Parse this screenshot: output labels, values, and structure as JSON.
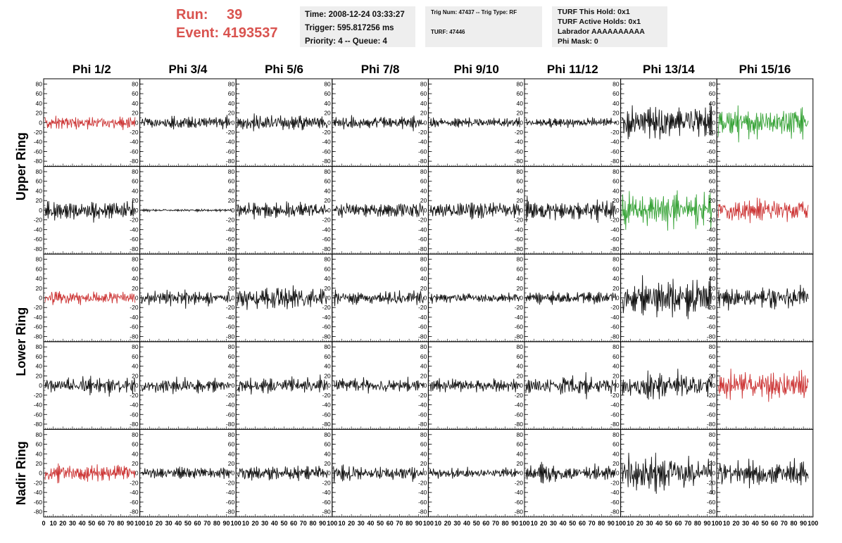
{
  "header": {
    "run_label": "Run:",
    "run_value": "39",
    "event_label": "Event:",
    "event_value": "4193537",
    "time": "Time: 2008-12-24 03:33:27",
    "trigger": "Trigger: 595.817256 ms",
    "priority": "Priority: 4 -- Queue: 4",
    "trig_num": "Trig Num: 47437 -- Trig Type: RF",
    "turf": "TURF: 47446",
    "turf_hold": "TURF This Hold: 0x1",
    "turf_active": "TURF Active Holds: 0x1",
    "labrador": "Labrador AAAAAAAAAA",
    "phi_mask": "Phi Mask: 0"
  },
  "chart_data": {
    "type": "line",
    "columns": [
      "Phi 1/2",
      "Phi 3/4",
      "Phi 5/6",
      "Phi 7/8",
      "Phi 9/10",
      "Phi 11/12",
      "Phi 13/14",
      "Phi 15/16"
    ],
    "ring_labels": [
      {
        "text": "Upper Ring",
        "rows": [
          0,
          1
        ]
      },
      {
        "text": "Lower Ring",
        "rows": [
          2,
          3
        ]
      },
      {
        "text": "Nadir Ring",
        "rows": [
          4,
          4
        ]
      }
    ],
    "xlim": [
      0,
      100
    ],
    "ylim": [
      -85,
      85
    ],
    "x_ticks": [
      "0",
      "10",
      "20",
      "30",
      "40",
      "50",
      "60",
      "70",
      "80",
      "90",
      "100"
    ],
    "y_ticks": [
      80,
      60,
      40,
      20,
      0,
      -20,
      -40,
      -60,
      -80
    ],
    "colors": {
      "red": "#cc3333",
      "green": "#33a133",
      "black": "#111111"
    },
    "panels": [
      [
        {
          "color": "red",
          "amp": 16
        },
        {
          "color": "black",
          "amp": 15
        },
        {
          "color": "black",
          "amp": 20
        },
        {
          "color": "black",
          "amp": 15
        },
        {
          "color": "black",
          "amp": 11
        },
        {
          "color": "black",
          "amp": 12
        },
        {
          "color": "black",
          "amp": 38
        },
        {
          "color": "green",
          "amp": 34
        }
      ],
      [
        {
          "color": "black",
          "amp": 22
        },
        {
          "color": "black",
          "amp": 3
        },
        {
          "color": "black",
          "amp": 18
        },
        {
          "color": "black",
          "amp": 20
        },
        {
          "color": "black",
          "amp": 20
        },
        {
          "color": "black",
          "amp": 24
        },
        {
          "color": "green",
          "amp": 42
        },
        {
          "color": "red",
          "amp": 28
        }
      ],
      [
        {
          "color": "red",
          "amp": 16
        },
        {
          "color": "black",
          "amp": 18
        },
        {
          "color": "black",
          "amp": 26
        },
        {
          "color": "black",
          "amp": 17
        },
        {
          "color": "black",
          "amp": 12
        },
        {
          "color": "black",
          "amp": 14
        },
        {
          "color": "black",
          "amp": 42
        },
        {
          "color": "black",
          "amp": 26
        }
      ],
      [
        {
          "color": "black",
          "amp": 20
        },
        {
          "color": "black",
          "amp": 18
        },
        {
          "color": "black",
          "amp": 20
        },
        {
          "color": "black",
          "amp": 18
        },
        {
          "color": "black",
          "amp": 16
        },
        {
          "color": "black",
          "amp": 24
        },
        {
          "color": "black",
          "amp": 32
        },
        {
          "color": "red",
          "amp": 34
        }
      ],
      [
        {
          "color": "red",
          "amp": 20
        },
        {
          "color": "black",
          "amp": 14
        },
        {
          "color": "black",
          "amp": 17
        },
        {
          "color": "black",
          "amp": 18
        },
        {
          "color": "black",
          "amp": 13
        },
        {
          "color": "black",
          "amp": 20
        },
        {
          "color": "black",
          "amp": 40
        },
        {
          "color": "black",
          "amp": 30
        }
      ]
    ]
  }
}
